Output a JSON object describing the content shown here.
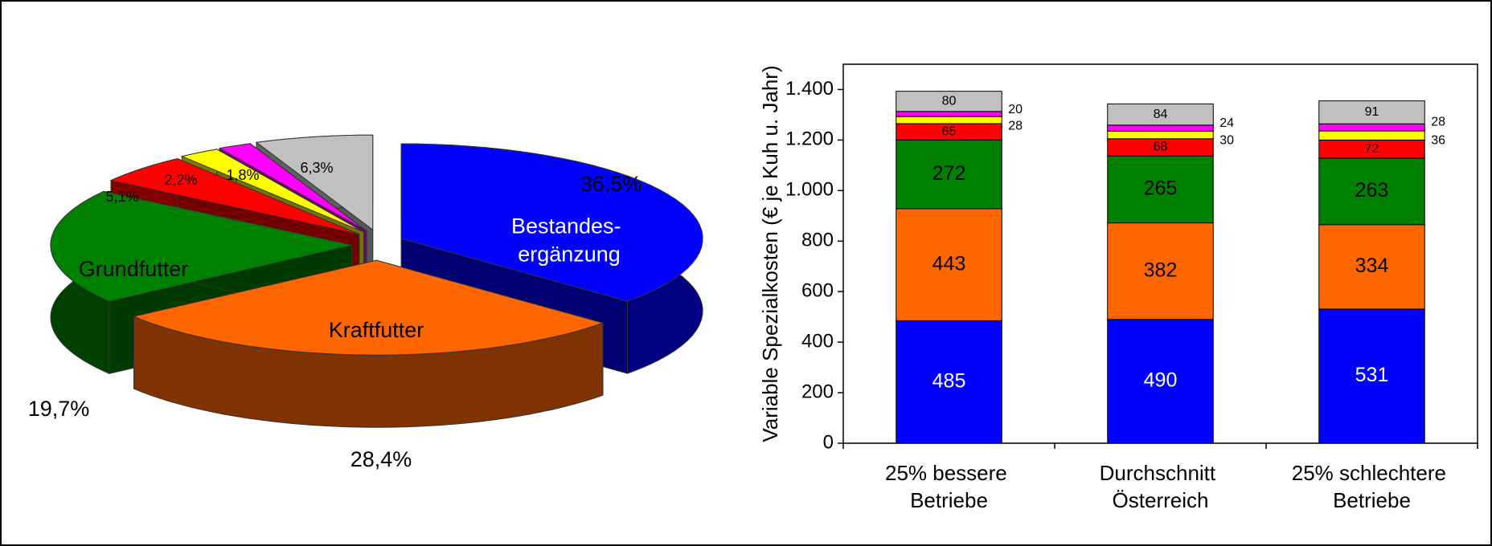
{
  "chart_data": [
    {
      "type": "pie",
      "categories": [
        "Bestandes-\nergänzung",
        "Kraftfutter",
        "Grundfutter",
        null,
        null,
        null,
        null
      ],
      "values": [
        36.5,
        28.4,
        19.7,
        5.1,
        2.2,
        1.8,
        6.3
      ],
      "value_labels": [
        "36,5%",
        "28,4%",
        "19,7%",
        "5,1%",
        "2,2%",
        "1,8%",
        "6,3%"
      ],
      "colors": [
        "#0000ff",
        "#ff6600",
        "#008000",
        "#ff0000",
        "#ffff00",
        "#ff00ff",
        "#c0c0c0"
      ]
    },
    {
      "type": "bar",
      "stacked": true,
      "ylabel": "Variable Spezialkosten (€ je Kuh u. Jahr)",
      "categories": [
        "25% bessere\nBetriebe",
        "Durchschnitt\nÖsterreich",
        "25% schlechtere\nBetriebe"
      ],
      "series": [
        {
          "color": "#0000ff",
          "values": [
            485,
            490,
            531
          ]
        },
        {
          "color": "#ff6600",
          "values": [
            443,
            382,
            334
          ]
        },
        {
          "color": "#008000",
          "values": [
            272,
            265,
            263
          ]
        },
        {
          "color": "#ff0000",
          "values": [
            65,
            68,
            72
          ]
        },
        {
          "color": "#ffff00",
          "values": [
            28,
            30,
            36
          ]
        },
        {
          "color": "#ff00ff",
          "values": [
            20,
            24,
            28
          ]
        },
        {
          "color": "#c0c0c0",
          "values": [
            80,
            84,
            91
          ]
        }
      ],
      "ylim": [
        0,
        1500
      ],
      "yticks": [
        0,
        200,
        400,
        600,
        800,
        {
          "value": 1000,
          "label": "1.000"
        },
        {
          "value": 1200,
          "label": "1.200"
        },
        {
          "value": 1400,
          "label": "1.400"
        }
      ]
    }
  ]
}
